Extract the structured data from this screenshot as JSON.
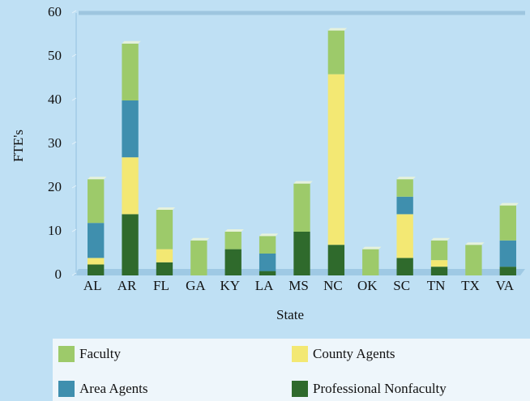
{
  "chart_data": {
    "type": "stacked_bar",
    "x_label": "State",
    "y_label": "FTE's",
    "categories": [
      "AL",
      "AR",
      "FL",
      "GA",
      "KY",
      "LA",
      "MS",
      "NC",
      "OK",
      "SC",
      "TN",
      "TX",
      "VA"
    ],
    "series": [
      {
        "name": "Professional Nonfaculty",
        "color": "#2f6a2c",
        "values": [
          2.5,
          14,
          3,
          0,
          6,
          1,
          10,
          7,
          0,
          4,
          2,
          0,
          2
        ]
      },
      {
        "name": "County Agents",
        "color": "#f3e873",
        "values": [
          1.5,
          13,
          3,
          0,
          0,
          0,
          0,
          39,
          0,
          10,
          1.5,
          0,
          0
        ]
      },
      {
        "name": "Area Agents",
        "color": "#3f8fae",
        "values": [
          8,
          13,
          0,
          0,
          0,
          4,
          0,
          0,
          0,
          4,
          0,
          0,
          6
        ]
      },
      {
        "name": "Faculty",
        "color": "#9dca6a",
        "values": [
          10,
          13,
          9,
          8,
          4,
          4,
          11,
          10,
          6,
          4,
          4.5,
          7,
          8
        ]
      }
    ],
    "ylim": [
      0,
      60
    ],
    "yticks": [
      0,
      10,
      20,
      30,
      40,
      50,
      60
    ]
  }
}
